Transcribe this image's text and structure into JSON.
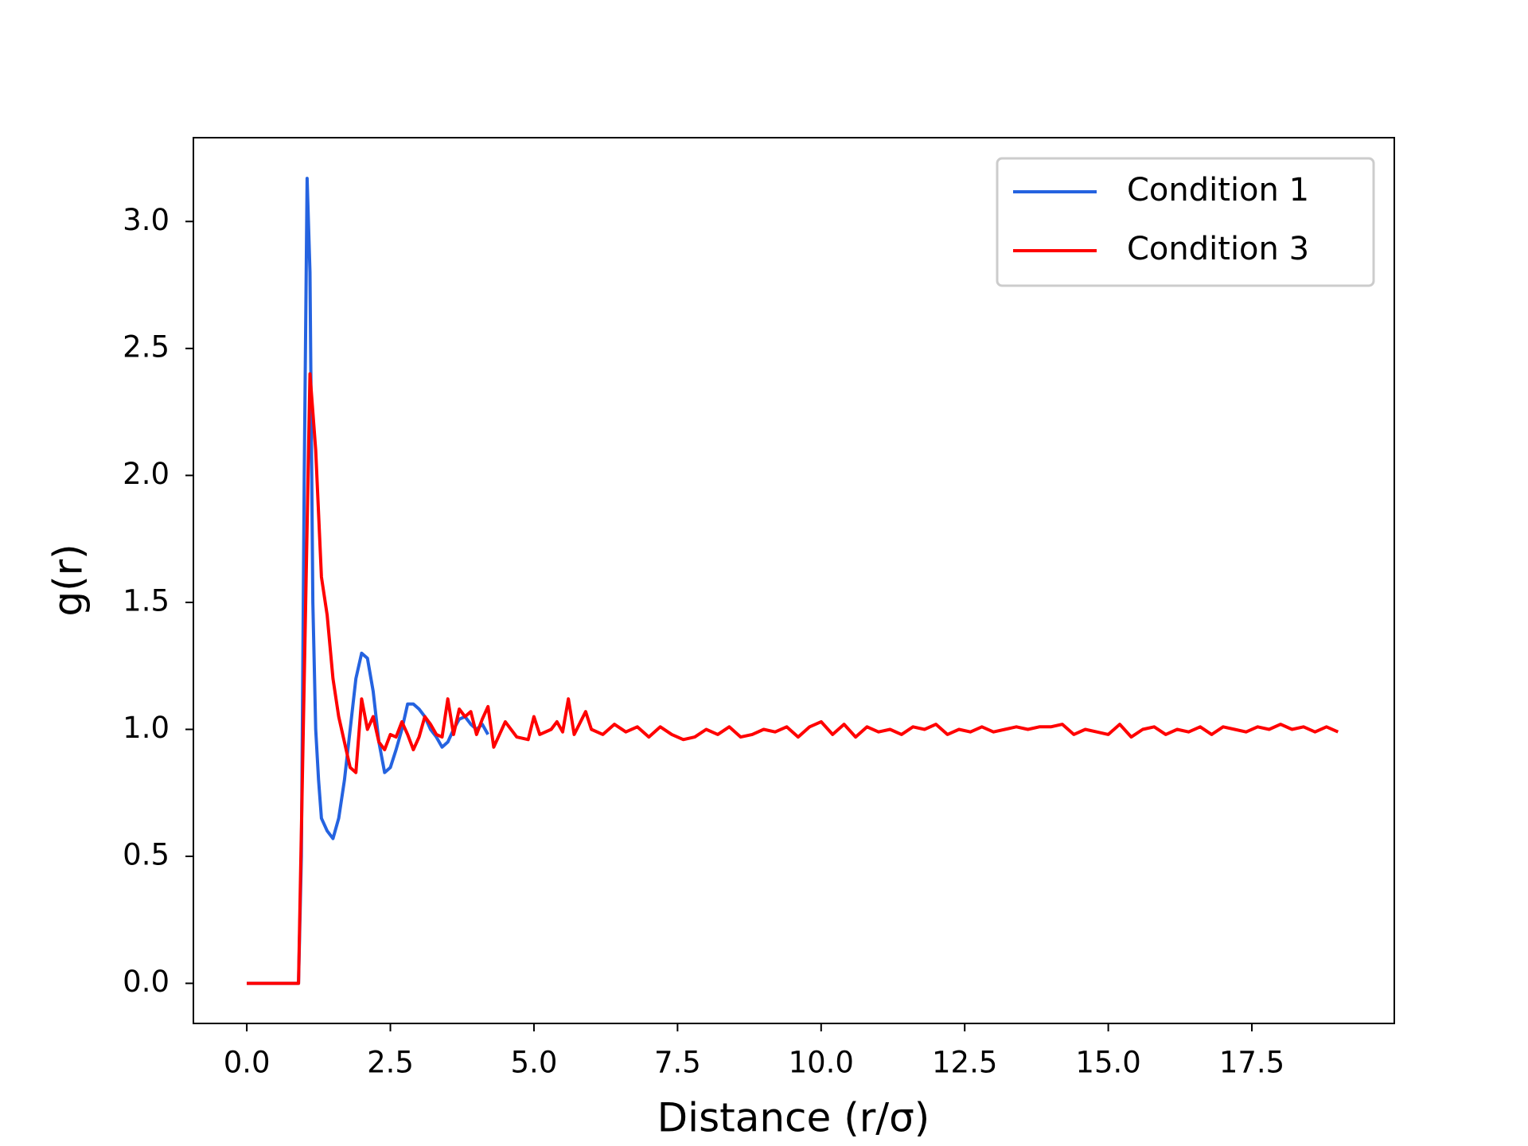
{
  "chart_data": {
    "type": "line",
    "xlabel": "Distance (r/σ)",
    "ylabel": "g(r)",
    "xlim": [
      -0.93,
      19.98
    ],
    "ylim": [
      -0.158,
      3.33
    ],
    "xticks": [
      {
        "value": 0,
        "label": "0.0"
      },
      2.5,
      {
        "value": 5,
        "label": "5.0"
      },
      7.5,
      {
        "value": 10,
        "label": "10.0"
      },
      12.5,
      {
        "value": 15,
        "label": "15.0"
      },
      17.5
    ],
    "yticks": [
      {
        "value": 0,
        "label": "0.0"
      },
      0.5,
      {
        "value": 1,
        "label": "1.0"
      },
      1.5,
      {
        "value": 2,
        "label": "2.0"
      },
      2.5,
      {
        "value": 3,
        "label": "3.0"
      }
    ],
    "legend": "upper right",
    "series": [
      {
        "name": "Condition 1",
        "color": "#2563e0",
        "x": [
          0,
          0.5,
          0.9,
          0.95,
          1.0,
          1.05,
          1.1,
          1.15,
          1.2,
          1.25,
          1.3,
          1.4,
          1.5,
          1.6,
          1.7,
          1.8,
          1.9,
          2.0,
          2.1,
          2.2,
          2.3,
          2.4,
          2.5,
          2.6,
          2.7,
          2.8,
          2.9,
          3.0,
          3.1,
          3.2,
          3.3,
          3.4,
          3.5,
          3.6,
          3.7,
          3.8,
          3.9,
          4.0,
          4.1,
          4.2
        ],
        "values": [
          0,
          0,
          0,
          0.5,
          2.0,
          3.17,
          2.8,
          1.5,
          1.0,
          0.8,
          0.65,
          0.6,
          0.57,
          0.65,
          0.8,
          1.0,
          1.2,
          1.3,
          1.28,
          1.15,
          0.95,
          0.83,
          0.85,
          0.92,
          1.0,
          1.1,
          1.1,
          1.08,
          1.05,
          1.0,
          0.97,
          0.93,
          0.95,
          1.0,
          1.04,
          1.05,
          1.02,
          1.0,
          1.02,
          0.98
        ]
      },
      {
        "name": "Condition 3",
        "color": "#ff0000",
        "x": [
          0,
          0.5,
          0.9,
          1.0,
          1.1,
          1.2,
          1.3,
          1.4,
          1.5,
          1.6,
          1.7,
          1.8,
          1.9,
          2.0,
          2.1,
          2.2,
          2.3,
          2.4,
          2.5,
          2.6,
          2.7,
          2.8,
          2.9,
          3.0,
          3.1,
          3.2,
          3.3,
          3.4,
          3.5,
          3.6,
          3.7,
          3.8,
          3.9,
          4.0,
          4.1,
          4.2,
          4.3,
          4.5,
          4.7,
          4.9,
          5.0,
          5.1,
          5.3,
          5.4,
          5.5,
          5.6,
          5.7,
          5.9,
          6.0,
          6.2,
          6.4,
          6.6,
          6.8,
          7.0,
          7.2,
          7.4,
          7.6,
          7.8,
          8.0,
          8.2,
          8.4,
          8.6,
          8.8,
          9.0,
          9.2,
          9.4,
          9.6,
          9.8,
          10.0,
          10.2,
          10.4,
          10.6,
          10.8,
          11.0,
          11.2,
          11.4,
          11.6,
          11.8,
          12.0,
          12.2,
          12.4,
          12.6,
          12.8,
          13.0,
          13.2,
          13.4,
          13.6,
          13.8,
          14.0,
          14.2,
          14.4,
          14.6,
          14.8,
          15.0,
          15.2,
          15.4,
          15.6,
          15.8,
          16.0,
          16.2,
          16.4,
          16.6,
          16.8,
          17.0,
          17.2,
          17.4,
          17.6,
          17.8,
          18.0,
          18.2,
          18.4,
          18.6,
          18.8,
          19.0
        ],
        "values": [
          0,
          0,
          0,
          1.2,
          2.4,
          2.1,
          1.6,
          1.45,
          1.2,
          1.05,
          0.95,
          0.85,
          0.83,
          1.12,
          1.0,
          1.05,
          0.95,
          0.92,
          0.98,
          0.97,
          1.03,
          0.98,
          0.92,
          0.97,
          1.05,
          1.02,
          0.98,
          0.97,
          1.12,
          0.98,
          1.08,
          1.05,
          1.07,
          0.98,
          1.04,
          1.09,
          0.93,
          1.03,
          0.97,
          0.96,
          1.05,
          0.98,
          1.0,
          1.03,
          0.99,
          1.12,
          0.98,
          1.07,
          1.0,
          0.98,
          1.02,
          0.99,
          1.01,
          0.97,
          1.01,
          0.98,
          0.96,
          0.97,
          1.0,
          0.98,
          1.01,
          0.97,
          0.98,
          1.0,
          0.99,
          1.01,
          0.97,
          1.01,
          1.03,
          0.98,
          1.02,
          0.97,
          1.01,
          0.99,
          1.0,
          0.98,
          1.01,
          1.0,
          1.02,
          0.98,
          1.0,
          0.99,
          1.01,
          0.99,
          1.0,
          1.01,
          1.0,
          1.01,
          1.01,
          1.02,
          0.98,
          1.0,
          0.99,
          0.98,
          1.02,
          0.97,
          1.0,
          1.01,
          0.98,
          1.0,
          0.99,
          1.01,
          0.98,
          1.01,
          1.0,
          0.99,
          1.01,
          1.0,
          1.02,
          1.0,
          1.01,
          0.99,
          1.01,
          0.99
        ]
      }
    ]
  }
}
